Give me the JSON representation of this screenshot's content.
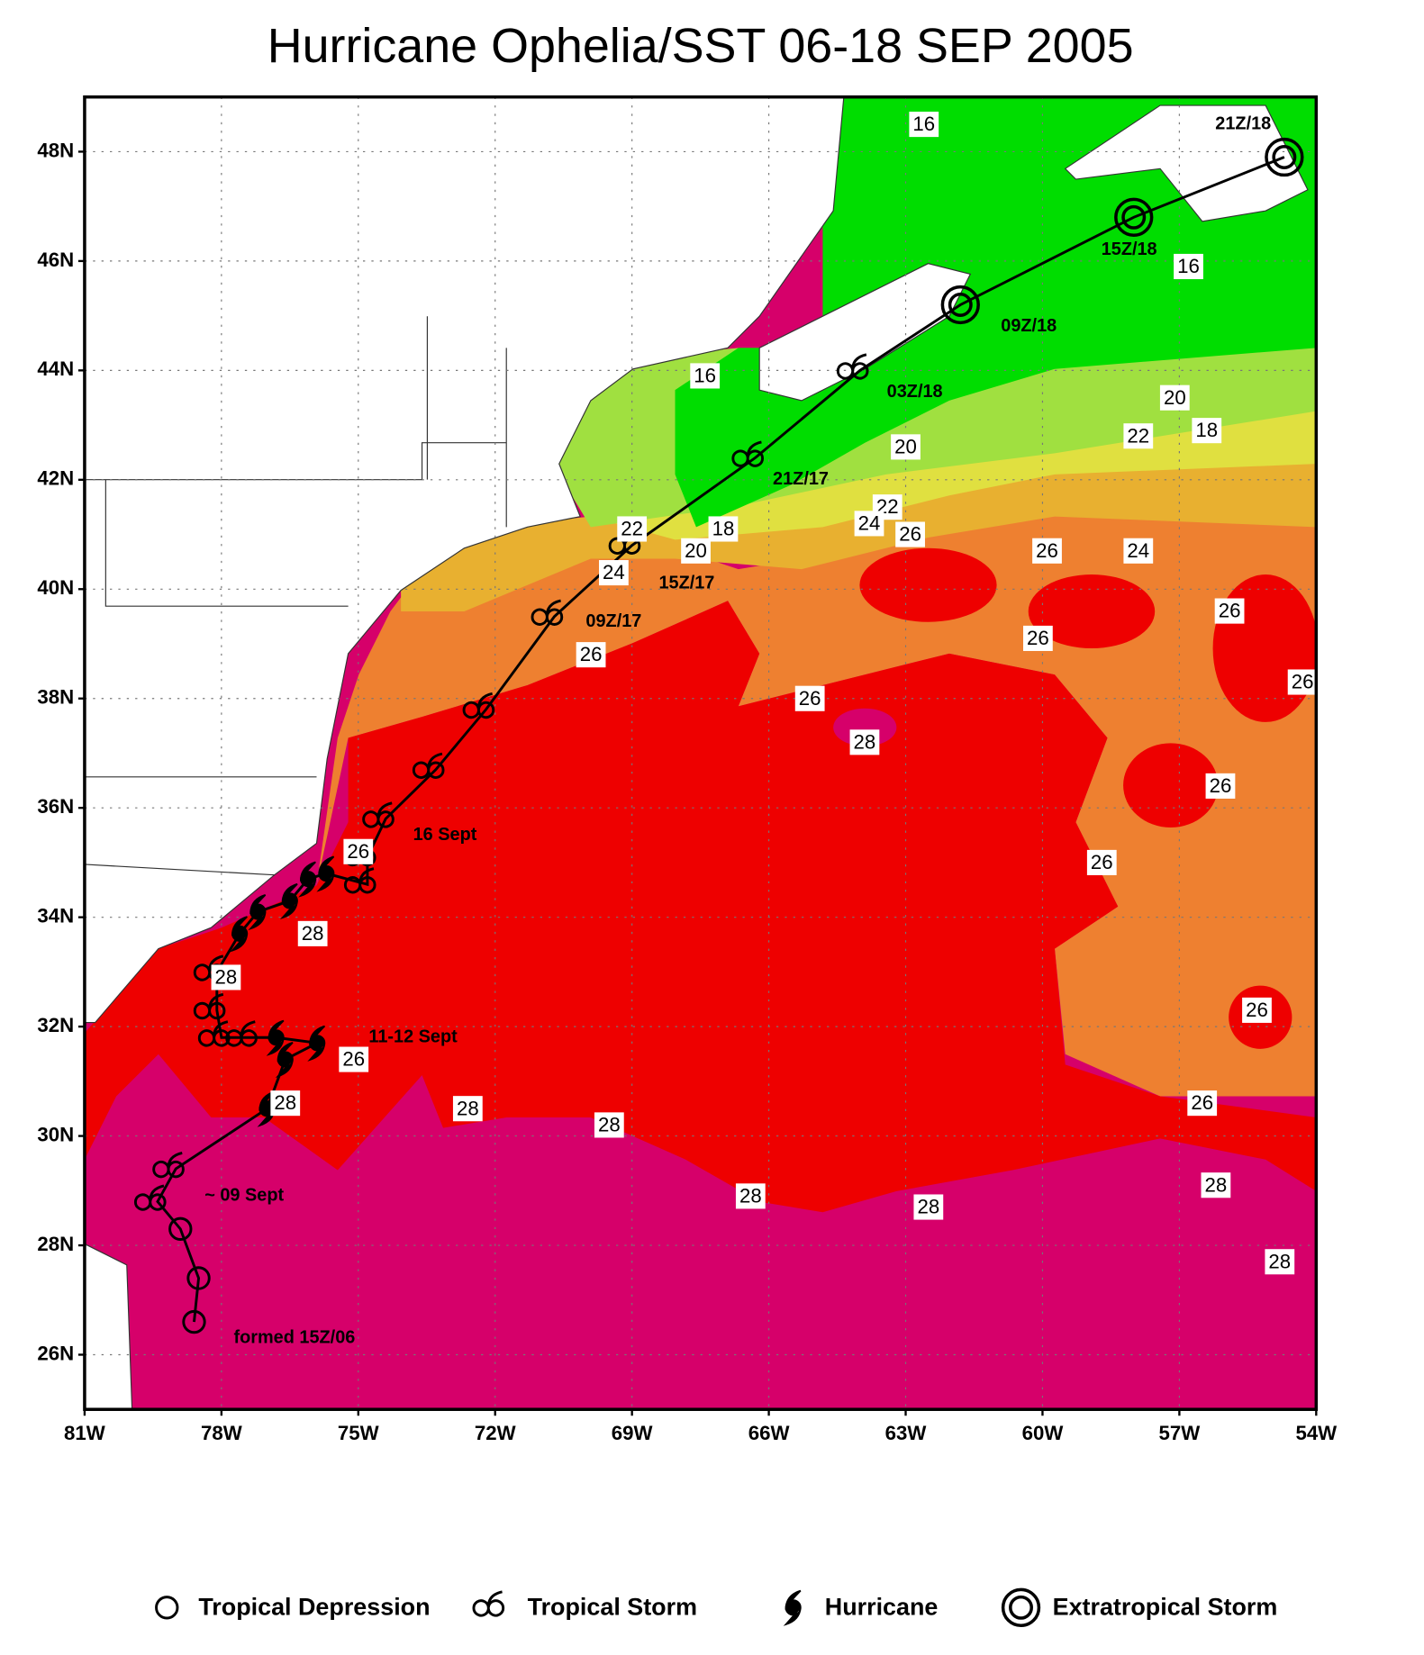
{
  "title": "Hurricane Ophelia/SST 06-18 SEP 2005",
  "map": {
    "xlim": [
      -81,
      -54
    ],
    "ylim": [
      25,
      49
    ],
    "grid": true,
    "xticks": [
      {
        "value": -81,
        "label": "81W"
      },
      {
        "value": -78,
        "label": "78W"
      },
      {
        "value": -75,
        "label": "75W"
      },
      {
        "value": -72,
        "label": "72W"
      },
      {
        "value": -69,
        "label": "69W"
      },
      {
        "value": -66,
        "label": "66W"
      },
      {
        "value": -63,
        "label": "63W"
      },
      {
        "value": -60,
        "label": "60W"
      },
      {
        "value": -57,
        "label": "57W"
      },
      {
        "value": -54,
        "label": "54W"
      }
    ],
    "yticks": [
      {
        "value": 26,
        "label": "26N"
      },
      {
        "value": 28,
        "label": "28N"
      },
      {
        "value": 30,
        "label": "30N"
      },
      {
        "value": 32,
        "label": "32N"
      },
      {
        "value": 34,
        "label": "34N"
      },
      {
        "value": 36,
        "label": "36N"
      },
      {
        "value": 38,
        "label": "38N"
      },
      {
        "value": 40,
        "label": "40N"
      },
      {
        "value": 42,
        "label": "42N"
      },
      {
        "value": 44,
        "label": "44N"
      },
      {
        "value": 46,
        "label": "46N"
      },
      {
        "value": 48,
        "label": "48N"
      }
    ]
  },
  "track": {
    "color": "#000000",
    "points": [
      {
        "lon": -78.6,
        "lat": 26.6,
        "kind": "Tropical Depression"
      },
      {
        "lon": -78.5,
        "lat": 27.4,
        "kind": "Tropical Depression"
      },
      {
        "lon": -78.9,
        "lat": 28.3,
        "kind": "Tropical Depression"
      },
      {
        "lon": -79.4,
        "lat": 28.8,
        "kind": "Tropical Storm"
      },
      {
        "lon": -79.0,
        "lat": 29.4,
        "kind": "Tropical Storm"
      },
      {
        "lon": -77.0,
        "lat": 30.5,
        "kind": "Hurricane"
      },
      {
        "lon": -76.6,
        "lat": 31.4,
        "kind": "Hurricane"
      },
      {
        "lon": -75.9,
        "lat": 31.7,
        "kind": "Hurricane"
      },
      {
        "lon": -76.8,
        "lat": 31.8,
        "kind": "Hurricane"
      },
      {
        "lon": -77.4,
        "lat": 31.8,
        "kind": "Tropical Storm"
      },
      {
        "lon": -78.0,
        "lat": 31.8,
        "kind": "Tropical Storm"
      },
      {
        "lon": -78.1,
        "lat": 32.3,
        "kind": "Tropical Storm"
      },
      {
        "lon": -78.1,
        "lat": 33.0,
        "kind": "Tropical Storm"
      },
      {
        "lon": -77.6,
        "lat": 33.7,
        "kind": "Hurricane"
      },
      {
        "lon": -77.2,
        "lat": 34.1,
        "kind": "Hurricane"
      },
      {
        "lon": -76.5,
        "lat": 34.3,
        "kind": "Hurricane"
      },
      {
        "lon": -76.1,
        "lat": 34.7,
        "kind": "Hurricane"
      },
      {
        "lon": -75.7,
        "lat": 34.8,
        "kind": "Hurricane"
      },
      {
        "lon": -74.8,
        "lat": 34.6,
        "kind": "Tropical Storm"
      },
      {
        "lon": -74.8,
        "lat": 35.1,
        "kind": "Tropical Storm"
      },
      {
        "lon": -74.4,
        "lat": 35.8,
        "kind": "Tropical Storm"
      },
      {
        "lon": -73.3,
        "lat": 36.7,
        "kind": "Tropical Storm"
      },
      {
        "lon": -72.2,
        "lat": 37.8,
        "kind": "Tropical Storm"
      },
      {
        "lon": -70.7,
        "lat": 39.5,
        "kind": "Tropical Storm"
      },
      {
        "lon": -69.0,
        "lat": 40.8,
        "kind": "Tropical Storm"
      },
      {
        "lon": -66.3,
        "lat": 42.4,
        "kind": "Tropical Storm"
      },
      {
        "lon": -64.0,
        "lat": 44.0,
        "kind": "Tropical Storm"
      },
      {
        "lon": -61.8,
        "lat": 45.2,
        "kind": "Extratropical Storm"
      },
      {
        "lon": -58.0,
        "lat": 46.8,
        "kind": "Extratropical Storm"
      },
      {
        "lon": -54.7,
        "lat": 47.9,
        "kind": "Extratropical Storm"
      }
    ]
  },
  "annotations": [
    {
      "text": "formed 15Z/06",
      "lon": -76.4,
      "lat": 26.3
    },
    {
      "text": "~ 09 Sept",
      "lon": -77.5,
      "lat": 28.9
    },
    {
      "text": "11-12 Sept",
      "lon": -73.8,
      "lat": 31.8
    },
    {
      "text": "16 Sept",
      "lon": -73.1,
      "lat": 35.5
    },
    {
      "text": "09Z/17",
      "lon": -69.4,
      "lat": 39.4
    },
    {
      "text": "15Z/17",
      "lon": -67.8,
      "lat": 40.1
    },
    {
      "text": "21Z/17",
      "lon": -65.3,
      "lat": 42.0
    },
    {
      "text": "03Z/18",
      "lon": -62.8,
      "lat": 43.6
    },
    {
      "text": "09Z/18",
      "lon": -60.3,
      "lat": 44.8
    },
    {
      "text": "15Z/18",
      "lon": -58.1,
      "lat": 46.2
    },
    {
      "text": "21Z/18",
      "lon": -55.6,
      "lat": 48.5
    }
  ],
  "sst_labels": [
    {
      "value": 16,
      "lon": -62.6,
      "lat": 48.5
    },
    {
      "value": 16,
      "lon": -56.8,
      "lat": 45.9
    },
    {
      "value": 16,
      "lon": -67.4,
      "lat": 43.9
    },
    {
      "value": 20,
      "lon": -57.1,
      "lat": 43.5
    },
    {
      "value": 18,
      "lon": -56.4,
      "lat": 42.9
    },
    {
      "value": 22,
      "lon": -57.9,
      "lat": 42.8
    },
    {
      "value": 20,
      "lon": -63.0,
      "lat": 42.6
    },
    {
      "value": 22,
      "lon": -63.4,
      "lat": 41.5
    },
    {
      "value": 24,
      "lon": -63.8,
      "lat": 41.2
    },
    {
      "value": 26,
      "lon": -62.9,
      "lat": 41.0
    },
    {
      "value": 18,
      "lon": -67.0,
      "lat": 41.1
    },
    {
      "value": 20,
      "lon": -67.6,
      "lat": 40.7
    },
    {
      "value": 22,
      "lon": -69.0,
      "lat": 41.1
    },
    {
      "value": 24,
      "lon": -69.4,
      "lat": 40.3
    },
    {
      "value": 26,
      "lon": -69.9,
      "lat": 38.8
    },
    {
      "value": 26,
      "lon": -65.1,
      "lat": 38.0
    },
    {
      "value": 28,
      "lon": -63.9,
      "lat": 37.2
    },
    {
      "value": 26,
      "lon": -59.9,
      "lat": 40.7
    },
    {
      "value": 24,
      "lon": -57.9,
      "lat": 40.7
    },
    {
      "value": 26,
      "lon": -55.9,
      "lat": 39.6
    },
    {
      "value": 26,
      "lon": -60.1,
      "lat": 39.1
    },
    {
      "value": 26,
      "lon": -54.3,
      "lat": 38.3
    },
    {
      "value": 26,
      "lon": -56.1,
      "lat": 36.4
    },
    {
      "value": 26,
      "lon": -58.7,
      "lat": 35.0
    },
    {
      "value": 26,
      "lon": -55.3,
      "lat": 32.3
    },
    {
      "value": 26,
      "lon": -56.5,
      "lat": 30.6
    },
    {
      "value": 28,
      "lon": -56.2,
      "lat": 29.1
    },
    {
      "value": 28,
      "lon": -54.8,
      "lat": 27.7
    },
    {
      "value": 28,
      "lon": -62.5,
      "lat": 28.7
    },
    {
      "value": 28,
      "lon": -66.4,
      "lat": 28.9
    },
    {
      "value": 28,
      "lon": -69.5,
      "lat": 30.2
    },
    {
      "value": 28,
      "lon": -72.6,
      "lat": 30.5
    },
    {
      "value": 26,
      "lon": -75.1,
      "lat": 31.4
    },
    {
      "value": 28,
      "lon": -76.0,
      "lat": 33.7
    },
    {
      "value": 28,
      "lon": -76.6,
      "lat": 30.6
    },
    {
      "value": 26,
      "lon": -75.0,
      "lat": 35.2
    },
    {
      "value": 28,
      "lon": -77.9,
      "lat": 32.9
    }
  ],
  "legend": [
    "Tropical Depression",
    "Tropical Storm",
    "Hurricane",
    "Extratropical Storm"
  ]
}
